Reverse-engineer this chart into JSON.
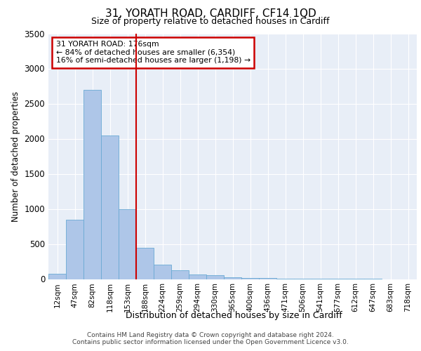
{
  "title_line1": "31, YORATH ROAD, CARDIFF, CF14 1QD",
  "title_line2": "Size of property relative to detached houses in Cardiff",
  "xlabel": "Distribution of detached houses by size in Cardiff",
  "ylabel": "Number of detached properties",
  "bar_labels": [
    "12sqm",
    "47sqm",
    "82sqm",
    "118sqm",
    "153sqm",
    "188sqm",
    "224sqm",
    "259sqm",
    "294sqm",
    "330sqm",
    "365sqm",
    "400sqm",
    "436sqm",
    "471sqm",
    "506sqm",
    "541sqm",
    "577sqm",
    "612sqm",
    "647sqm",
    "683sqm",
    "718sqm"
  ],
  "bar_values": [
    75,
    850,
    2700,
    2050,
    1000,
    450,
    210,
    130,
    70,
    55,
    30,
    20,
    15,
    10,
    5,
    3,
    2,
    1,
    1,
    0,
    0
  ],
  "bar_color": "#aec6e8",
  "bar_edge_color": "#6aaad4",
  "vline_color": "#cc0000",
  "annotation_text": "31 YORATH ROAD: 176sqm\n← 84% of detached houses are smaller (6,354)\n16% of semi-detached houses are larger (1,198) →",
  "annotation_box_color": "#cc0000",
  "ylim": [
    0,
    3500
  ],
  "yticks": [
    0,
    500,
    1000,
    1500,
    2000,
    2500,
    3000,
    3500
  ],
  "background_color": "#e8eef7",
  "footer_line1": "Contains HM Land Registry data © Crown copyright and database right 2024.",
  "footer_line2": "Contains public sector information licensed under the Open Government Licence v3.0."
}
